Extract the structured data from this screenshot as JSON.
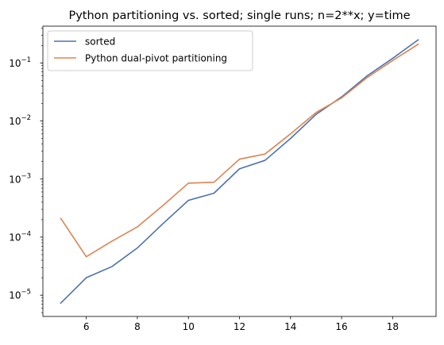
{
  "chart_data": {
    "type": "line",
    "title": "Python partitioning vs. sorted; single runs; n=2**x; y=time",
    "xlabel": "",
    "ylabel": "",
    "yscale": "log",
    "xlim": [
      4.3,
      19.7
    ],
    "ylim": [
      4.3e-06,
      0.43
    ],
    "x_ticks": [
      6,
      8,
      10,
      12,
      14,
      16,
      18
    ],
    "x_tick_labels": [
      "6",
      "8",
      "10",
      "12",
      "14",
      "16",
      "18"
    ],
    "y_ticks": [
      1e-05,
      0.0001,
      0.001,
      0.01,
      0.1
    ],
    "y_tick_labels": [
      {
        "base": "10",
        "exp": "−5"
      },
      {
        "base": "10",
        "exp": "−4"
      },
      {
        "base": "10",
        "exp": "−3"
      },
      {
        "base": "10",
        "exp": "−2"
      },
      {
        "base": "10",
        "exp": "−1"
      }
    ],
    "grid": false,
    "legend_position": "top-left",
    "x": [
      5,
      6,
      7,
      8,
      9,
      10,
      11,
      12,
      13,
      14,
      15,
      16,
      17,
      18,
      19
    ],
    "series": [
      {
        "name": "sorted",
        "color": "#4c72b0",
        "values": [
          7.3e-06,
          2e-05,
          3.1e-05,
          6.5e-05,
          0.00017,
          0.00043,
          0.00057,
          0.0015,
          0.0021,
          0.005,
          0.013,
          0.026,
          0.06,
          0.12,
          0.25
        ]
      },
      {
        "name": "Python dual-pivot partitioning",
        "color": "#dd8452",
        "values": [
          0.00021,
          4.6e-05,
          8.5e-05,
          0.00015,
          0.00035,
          0.00085,
          0.00088,
          0.0022,
          0.0027,
          0.006,
          0.014,
          0.025,
          0.056,
          0.11,
          0.21
        ]
      }
    ]
  }
}
